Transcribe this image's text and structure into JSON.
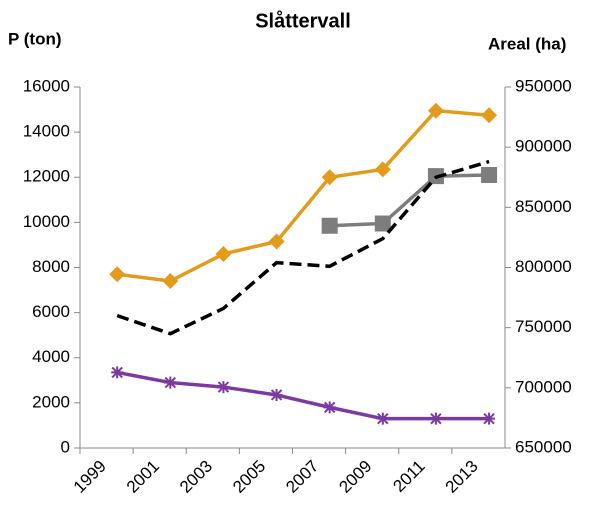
{
  "chart_data": {
    "type": "line",
    "title": "Slåttervall",
    "ylabel": "P (ton)",
    "y2label": "Areal (ha)",
    "categories": [
      "1999",
      "2001",
      "2003",
      "2005",
      "2007",
      "2009",
      "2011",
      "2013"
    ],
    "ylim": [
      0,
      16000
    ],
    "yticks": [
      0,
      2000,
      4000,
      6000,
      8000,
      10000,
      12000,
      14000,
      16000
    ],
    "y2lim": [
      650000,
      950000
    ],
    "y2ticks": [
      650000,
      700000,
      750000,
      800000,
      850000,
      900000,
      950000
    ],
    "grid": false,
    "series": [
      {
        "color": "#e39b1c",
        "marker": "diamond",
        "values": [
          7700,
          7400,
          8600,
          9150,
          12000,
          12350,
          14950,
          14750
        ]
      },
      {
        "color": "#7d7d7d",
        "marker": "square",
        "values": [
          null,
          null,
          null,
          null,
          9850,
          9950,
          12050,
          12100
        ]
      },
      {
        "color": "#000000",
        "marker": "none",
        "dashed": true,
        "axis": "y2",
        "values": [
          760000,
          745000,
          766000,
          804000,
          801000,
          824000,
          875000,
          888000
        ]
      },
      {
        "color": "#7a3aa0",
        "marker": "star",
        "values": [
          3350,
          2900,
          2700,
          2350,
          1800,
          1300,
          1300,
          1300
        ]
      }
    ]
  }
}
